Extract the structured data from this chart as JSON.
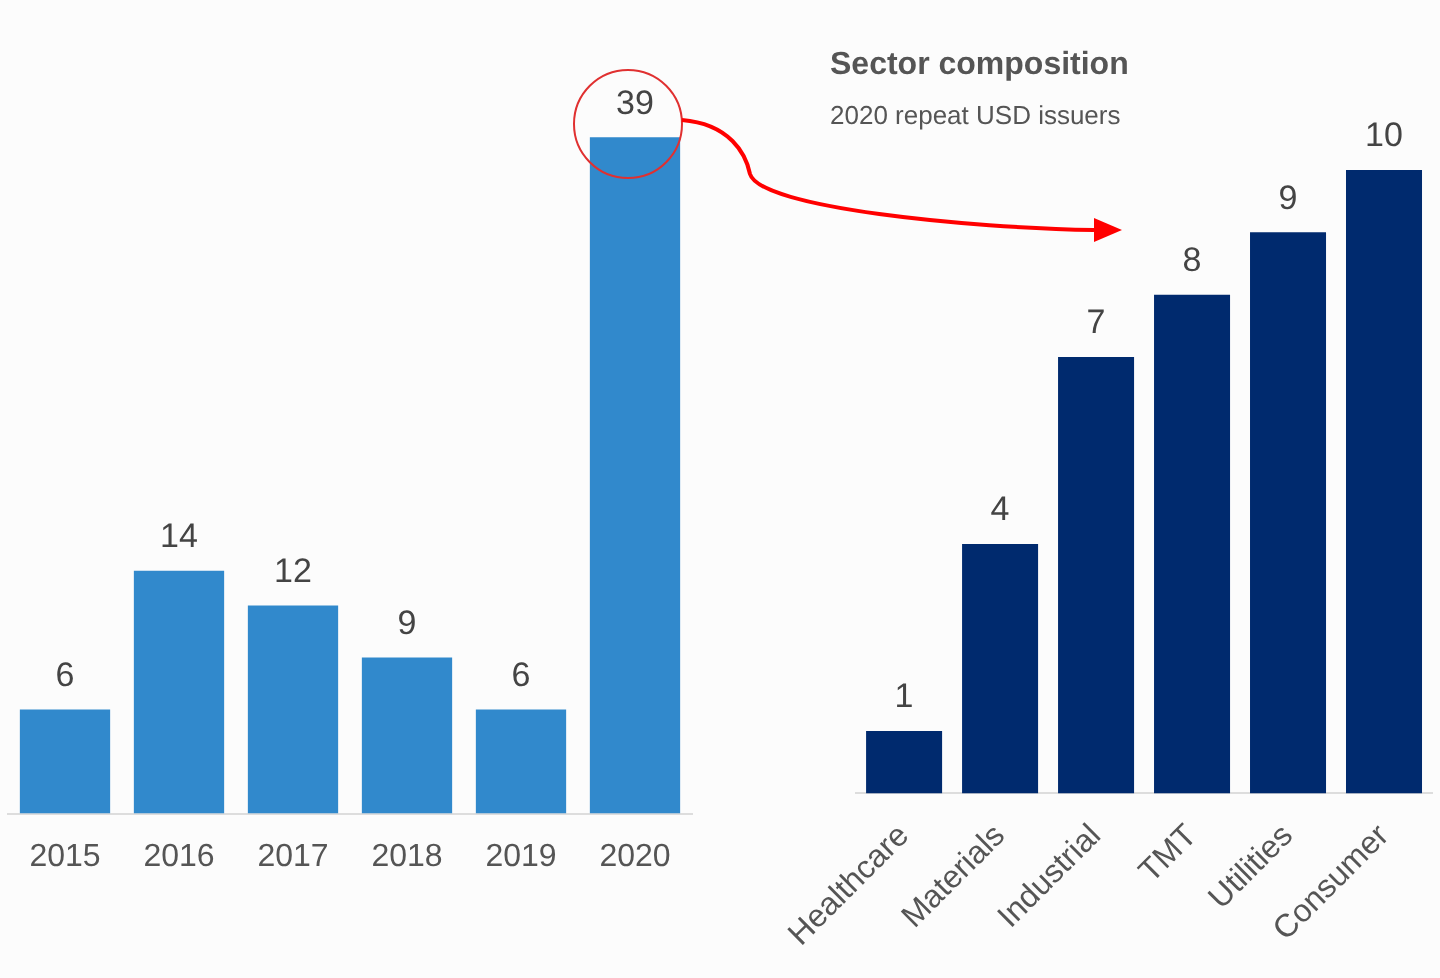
{
  "chart_data": [
    {
      "type": "bar",
      "categories": [
        "2015",
        "2016",
        "2017",
        "2018",
        "2019",
        "2020"
      ],
      "values": [
        6,
        14,
        12,
        9,
        6,
        39
      ],
      "color": "#3189cc",
      "data_labels": true,
      "grid": false,
      "legend": false
    },
    {
      "type": "bar",
      "title": "Sector composition",
      "subtitle": "2020 repeat USD issuers",
      "categories": [
        "Healthcare",
        "Materials",
        "Industrial",
        "TMT",
        "Utilities",
        "Consumer"
      ],
      "values": [
        1,
        4,
        7,
        8,
        9,
        10
      ],
      "color": "#002a6e",
      "data_labels": true,
      "grid": false,
      "legend": false
    }
  ]
}
